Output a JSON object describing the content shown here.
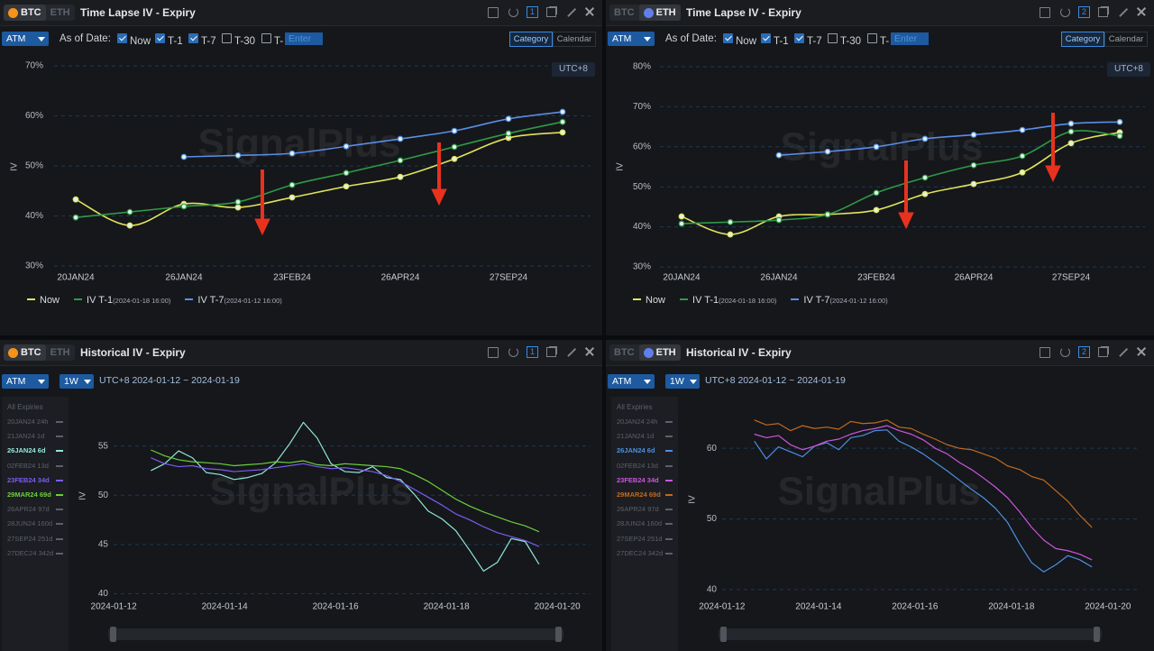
{
  "panels": [
    {
      "coins": [
        "BTC",
        "ETH"
      ],
      "active": 0,
      "title": "Time Lapse IV - Expiry",
      "index": 1,
      "mode": "ATM",
      "as_of_label": "As of Date:",
      "options": [
        {
          "label": "Now",
          "checked": true
        },
        {
          "label": "T-1",
          "checked": true
        },
        {
          "label": "T-7",
          "checked": true
        },
        {
          "label": "T-30",
          "checked": false
        },
        {
          "label": "T-",
          "checked": false
        }
      ],
      "input_placeholder": "Enter",
      "axis_modes": [
        "Category",
        "Calendar"
      ],
      "axis_mode_active": 0,
      "timezone": "UTC+8",
      "watermark": "SignalPlus"
    },
    {
      "coins": [
        "BTC",
        "ETH"
      ],
      "active": 1,
      "title": "Time Lapse IV - Expiry",
      "index": 2,
      "mode": "ATM",
      "as_of_label": "As of Date:",
      "options": [
        {
          "label": "Now",
          "checked": true
        },
        {
          "label": "T-1",
          "checked": true
        },
        {
          "label": "T-7",
          "checked": true
        },
        {
          "label": "T-30",
          "checked": false
        },
        {
          "label": "T-",
          "checked": false
        }
      ],
      "input_placeholder": "Enter",
      "axis_modes": [
        "Category",
        "Calendar"
      ],
      "axis_mode_active": 0,
      "timezone": "UTC+8",
      "watermark": "SignalPlus"
    },
    {
      "coins": [
        "BTC",
        "ETH"
      ],
      "active": 0,
      "title": "Historical IV - Expiry",
      "index": 1,
      "mode": "ATM",
      "period": "1W",
      "range": "UTC+8 2024-01-12 ~ 2024-01-19",
      "list_title": "All Expiries",
      "watermark": "SignalPlus"
    },
    {
      "coins": [
        "BTC",
        "ETH"
      ],
      "active": 1,
      "title": "Historical IV - Expiry",
      "index": 2,
      "mode": "ATM",
      "period": "1W",
      "range": "UTC+8 2024-01-12 ~ 2024-01-19",
      "list_title": "All Expiries",
      "watermark": "SignalPlus"
    }
  ],
  "chart_data": [
    {
      "type": "category-line",
      "y_label": "IV",
      "smooth": true,
      "markers": true,
      "grid": true,
      "categories": [
        "20JAN24",
        null,
        "26JAN24",
        null,
        "23FEB24",
        null,
        "26APR24",
        null,
        "27SEP24",
        null
      ],
      "ylim": [
        30,
        70
      ],
      "yticks": [
        {
          "value": 30,
          "label": "30%"
        },
        {
          "value": 40,
          "label": "40%"
        },
        {
          "value": 50,
          "label": "50%"
        },
        {
          "value": 60,
          "label": "60%"
        },
        {
          "value": 70,
          "label": "70%"
        }
      ],
      "series": [
        {
          "name": "Now",
          "color": "#e2e35a",
          "values": [
            43.3,
            38.1,
            42.4,
            41.7,
            43.7,
            45.9,
            47.8,
            51.4,
            55.6,
            56.7
          ]
        },
        {
          "name": "IV T-1",
          "as_of": "(2024-01-18 16:00)",
          "color": "#2f9a45",
          "values": [
            39.7,
            40.8,
            41.9,
            42.8,
            46.2,
            48.6,
            51.1,
            53.8,
            56.5,
            58.8
          ]
        },
        {
          "name": "IV T-7",
          "as_of": "(2024-01-12 16:00)",
          "color": "#5a8ee6",
          "values": [
            null,
            null,
            51.8,
            52.1,
            52.5,
            53.9,
            55.4,
            57.0,
            59.4,
            60.8
          ]
        }
      ]
    },
    {
      "type": "category-line",
      "y_label": "IV",
      "smooth": true,
      "markers": true,
      "grid": true,
      "categories": [
        "20JAN24",
        null,
        "26JAN24",
        null,
        "23FEB24",
        null,
        "26APR24",
        null,
        "27SEP24",
        null
      ],
      "ylim": [
        30,
        80
      ],
      "yticks": [
        {
          "value": 30,
          "label": "30%"
        },
        {
          "value": 40,
          "label": "40%"
        },
        {
          "value": 50,
          "label": "50%"
        },
        {
          "value": 60,
          "label": "60%"
        },
        {
          "value": 70,
          "label": "70%"
        },
        {
          "value": 80,
          "label": "80%"
        }
      ],
      "series": [
        {
          "name": "Now",
          "color": "#e2e35a",
          "values": [
            42.6,
            38.1,
            42.6,
            43.1,
            44.2,
            48.2,
            50.7,
            53.6,
            60.9,
            63.6
          ]
        },
        {
          "name": "IV T-1",
          "as_of": "(2024-01-18 16:00)",
          "color": "#2f9a45",
          "values": [
            40.8,
            41.2,
            41.7,
            43.1,
            48.5,
            52.3,
            55.4,
            57.7,
            63.8,
            62.7
          ]
        },
        {
          "name": "IV T-7",
          "as_of": "(2024-01-12 16:00)",
          "color": "#5a8ee6",
          "values": [
            null,
            null,
            57.9,
            58.8,
            60.0,
            62.0,
            63.0,
            64.2,
            65.8,
            66.2
          ]
        }
      ]
    },
    {
      "type": "time-line",
      "y_label": "IV",
      "grid": true,
      "x": [
        12.67,
        12.92,
        13.17,
        13.42,
        13.67,
        13.92,
        14.17,
        14.42,
        14.67,
        14.92,
        15.17,
        15.42,
        15.67,
        15.92,
        16.17,
        16.42,
        16.67,
        16.92,
        17.17,
        17.42,
        17.67,
        17.92,
        18.17,
        18.42,
        18.67,
        18.92,
        19.17,
        19.42,
        19.67
      ],
      "xlim": [
        11.25,
        20.68
      ],
      "xticks": [
        {
          "value": 12,
          "label": "2024-01-12"
        },
        {
          "value": 14,
          "label": "2024-01-14"
        },
        {
          "value": 16,
          "label": "2024-01-16"
        },
        {
          "value": 18,
          "label": "2024-01-18"
        },
        {
          "value": 20,
          "label": "2024-01-20"
        }
      ],
      "ylim": [
        39.5,
        60
      ],
      "yticks": [
        40,
        45,
        50,
        55
      ],
      "series": [
        {
          "name": "20JAN24 24h",
          "visible": false
        },
        {
          "name": "21JAN24 1d",
          "visible": false
        },
        {
          "name": "26JAN24 6d",
          "color": "#93e6d8",
          "values": [
            52.5,
            53.2,
            54.5,
            53.8,
            52.3,
            52.1,
            51.6,
            51.8,
            52.2,
            53.3,
            55.2,
            57.4,
            55.8,
            53.2,
            52.4,
            52.3,
            52.9,
            51.8,
            51.6,
            50.1,
            48.4,
            47.6,
            46.4,
            44.4,
            42.3,
            43.2,
            45.6,
            45.3,
            43.0
          ]
        },
        {
          "name": "02FEB24 13d",
          "visible": false
        },
        {
          "name": "23FEB24 34d",
          "color": "#7a5cf0",
          "values": [
            53.8,
            53.2,
            52.9,
            53.0,
            52.7,
            52.6,
            52.4,
            52.5,
            52.6,
            52.8,
            53.0,
            53.2,
            52.9,
            52.7,
            52.8,
            52.6,
            52.4,
            52.0,
            51.4,
            50.6,
            49.8,
            49.0,
            48.1,
            47.5,
            46.8,
            46.2,
            45.8,
            45.4,
            44.8
          ]
        },
        {
          "name": "29MAR24 69d",
          "color": "#6bcf3a",
          "values": [
            54.6,
            54.0,
            53.6,
            53.4,
            53.3,
            53.2,
            53.0,
            53.1,
            53.2,
            53.4,
            53.3,
            53.5,
            53.1,
            53.0,
            53.2,
            53.1,
            53.0,
            52.9,
            52.7,
            52.1,
            51.4,
            50.5,
            49.6,
            48.9,
            48.3,
            47.8,
            47.3,
            46.9,
            46.3
          ]
        },
        {
          "name": "26APR24 97d",
          "visible": false
        },
        {
          "name": "28JUN24 160d",
          "visible": false
        },
        {
          "name": "27SEP24 251d",
          "visible": false
        },
        {
          "name": "27DEC24 342d",
          "visible": false
        }
      ]
    },
    {
      "type": "time-line",
      "y_label": "IV",
      "grid": true,
      "x": [
        12.67,
        12.92,
        13.17,
        13.42,
        13.67,
        13.92,
        14.17,
        14.42,
        14.67,
        14.92,
        15.17,
        15.42,
        15.67,
        15.92,
        16.17,
        16.42,
        16.67,
        16.92,
        17.17,
        17.42,
        17.67,
        17.92,
        18.17,
        18.42,
        18.67,
        18.92,
        19.17,
        19.42,
        19.67
      ],
      "xlim": [
        11.18,
        20.62
      ],
      "xticks": [
        {
          "value": 12,
          "label": "2024-01-12"
        },
        {
          "value": 14,
          "label": "2024-01-14"
        },
        {
          "value": 16,
          "label": "2024-01-16"
        },
        {
          "value": 18,
          "label": "2024-01-18"
        },
        {
          "value": 20,
          "label": "2024-01-20"
        }
      ],
      "ylim": [
        38.7,
        67.3
      ],
      "yticks": [
        40,
        50,
        60
      ],
      "series": [
        {
          "name": "20JAN24 24h",
          "visible": false
        },
        {
          "name": "21JAN24 1d",
          "visible": false
        },
        {
          "name": "26JAN24 6d",
          "color": "#4d8fe0",
          "values": [
            61.0,
            58.5,
            60.2,
            59.5,
            58.8,
            60.3,
            60.8,
            59.8,
            61.5,
            61.8,
            62.5,
            62.6,
            61.0,
            60.2,
            59.2,
            58.0,
            56.8,
            55.5,
            54.2,
            53.0,
            51.5,
            49.5,
            46.5,
            43.8,
            42.5,
            43.5,
            44.8,
            44.2,
            43.2
          ]
        },
        {
          "name": "02FEB24 13d",
          "visible": false
        },
        {
          "name": "23FEB24 34d",
          "color": "#cc55dd",
          "values": [
            62.0,
            61.5,
            61.8,
            60.5,
            59.8,
            60.3,
            61.0,
            61.3,
            62.0,
            62.5,
            62.8,
            63.2,
            62.5,
            62.0,
            61.2,
            60.0,
            59.2,
            58.0,
            57.0,
            55.8,
            54.5,
            53.0,
            51.0,
            48.8,
            47.0,
            45.8,
            45.5,
            45.0,
            44.2
          ]
        },
        {
          "name": "29MAR24 69d",
          "color": "#c06a20",
          "values": [
            64.0,
            63.3,
            63.5,
            62.5,
            63.2,
            62.8,
            63.0,
            62.7,
            63.8,
            63.5,
            63.6,
            64.0,
            63.0,
            62.8,
            62.0,
            61.3,
            60.5,
            60.0,
            59.8,
            59.2,
            58.6,
            57.5,
            57.0,
            56.0,
            55.5,
            54.0,
            52.5,
            50.5,
            48.8
          ]
        },
        {
          "name": "26APR24 97d",
          "visible": false
        },
        {
          "name": "28JUN24 160d",
          "visible": false
        },
        {
          "name": "27SEP24 251d",
          "visible": false
        },
        {
          "name": "27DEC24 342d",
          "visible": false
        }
      ]
    }
  ]
}
